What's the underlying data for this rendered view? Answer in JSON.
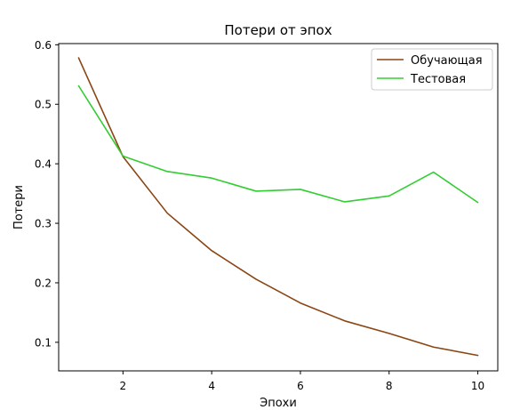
{
  "chart_data": {
    "type": "line",
    "title": "Потери от эпох",
    "xlabel": "Эпохи",
    "ylabel": "Потери",
    "x": [
      1,
      2,
      3,
      4,
      5,
      6,
      7,
      8,
      9,
      10
    ],
    "xticks": [
      2,
      4,
      6,
      8,
      10
    ],
    "yticks": [
      0.1,
      0.2,
      0.3,
      0.4,
      0.5,
      0.6
    ],
    "xlim": [
      0.55,
      10.45
    ],
    "ylim": [
      0.052,
      0.602
    ],
    "grid": false,
    "legend_position": "top-right",
    "series": [
      {
        "name": "Обучающая",
        "color": "#8B4513",
        "values": [
          0.578,
          0.412,
          0.317,
          0.254,
          0.206,
          0.166,
          0.136,
          0.115,
          0.092,
          0.078
        ]
      },
      {
        "name": "Тестовая",
        "color": "#32CD32",
        "values": [
          0.531,
          0.413,
          0.387,
          0.376,
          0.354,
          0.357,
          0.336,
          0.346,
          0.386,
          0.335
        ]
      }
    ]
  }
}
